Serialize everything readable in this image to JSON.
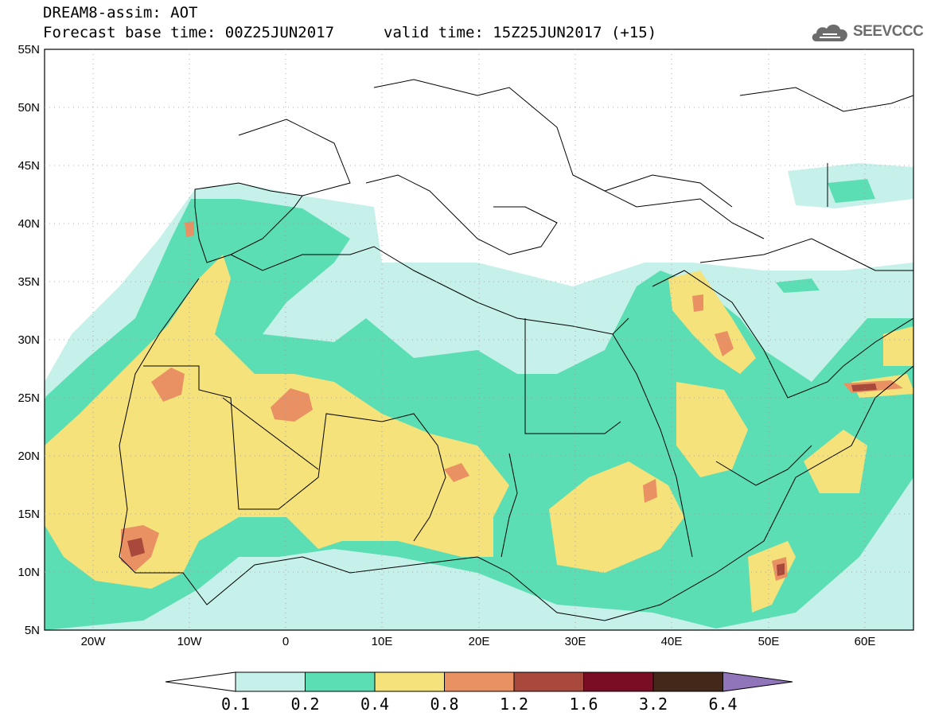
{
  "header": {
    "line1": "DREAM8-assim: AOT",
    "line2": "Forecast base time: 00Z25JUN2017",
    "line3": "valid time: 15Z25JUN2017 (+15)"
  },
  "logo": {
    "text": "SEEVCCC",
    "icon": "cloud-icon",
    "color": "#6c6c6c"
  },
  "map": {
    "lon_range": [
      -25,
      65
    ],
    "lat_range": [
      5,
      55
    ],
    "lat_labels": [
      "55N",
      "50N",
      "45N",
      "40N",
      "35N",
      "30N",
      "25N",
      "20N",
      "15N",
      "10N",
      "5N"
    ],
    "lon_labels": [
      "20W",
      "10W",
      "0",
      "10E",
      "20E",
      "30E",
      "40E",
      "50E",
      "60E"
    ]
  },
  "legend": {
    "ticks": [
      "0.1",
      "0.2",
      "0.4",
      "0.8",
      "1.2",
      "1.6",
      "3.2",
      "6.4"
    ],
    "colors": [
      "#ffffff",
      "#c6f0ea",
      "#5bdeb4",
      "#f5e27a",
      "#ea9164",
      "#a9493b",
      "#7a0c24",
      "#44291a",
      "#9175ba"
    ]
  }
}
